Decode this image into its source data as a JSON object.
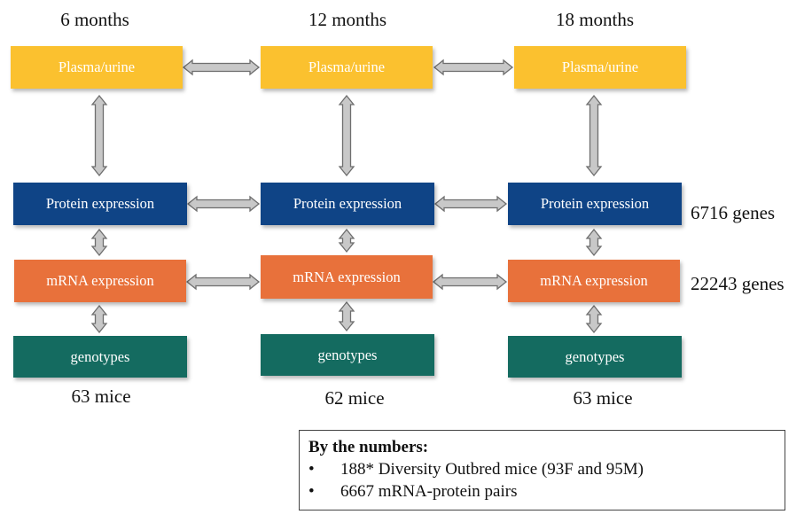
{
  "timepoints": [
    "6 months",
    "12 months",
    "18 months"
  ],
  "rows": {
    "plasma": "Plasma/urine",
    "protein": "Protein expression",
    "mrna": "mRNA expression",
    "genotypes": "genotypes"
  },
  "colors": {
    "plasma": "#fbc12f",
    "protein": "#0f4486",
    "mrna": "#e8713b",
    "genotypes": "#146b60",
    "arrow_fill": "#c8c8c8",
    "arrow_stroke": "#6e6e6e"
  },
  "mice_counts": [
    "63 mice",
    "62 mice",
    "63 mice"
  ],
  "gene_counts": {
    "protein": "6716 genes",
    "mrna": "22243 genes"
  },
  "numbers_box": {
    "title": "By the numbers:",
    "items": [
      "188* Diversity Outbred mice (93F and 95M)",
      "6667 mRNA-protein pairs"
    ]
  }
}
